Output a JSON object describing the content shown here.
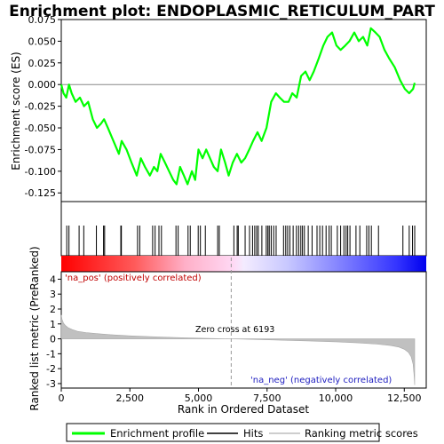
{
  "chart_data": {
    "type": "line",
    "title": "Enrichment plot: ENDOPLASMIC_RETICULUM_PART",
    "xlabel": "Rank in Ordered Dataset",
    "top_panel": {
      "ylabel": "Enrichment score (ES)",
      "xlim": [
        0,
        13300
      ],
      "ylim": [
        -0.135,
        0.075
      ],
      "yticks": [
        "0.075",
        "0.050",
        "0.025",
        "0.000",
        "-0.025",
        "-0.050",
        "-0.075",
        "-0.100",
        "-0.125"
      ],
      "ytick_values": [
        0.075,
        0.05,
        0.025,
        0.0,
        -0.025,
        -0.05,
        -0.075,
        -0.1,
        -0.125
      ],
      "series": [
        {
          "name": "Enrichment profile",
          "color": "#00ff00",
          "x": [
            0,
            80,
            180,
            280,
            380,
            520,
            680,
            830,
            980,
            1150,
            1300,
            1450,
            1560,
            1700,
            1900,
            2100,
            2200,
            2380,
            2560,
            2750,
            2900,
            3050,
            3230,
            3380,
            3500,
            3620,
            3780,
            3930,
            4080,
            4200,
            4330,
            4470,
            4600,
            4760,
            4880,
            5000,
            5150,
            5280,
            5420,
            5560,
            5700,
            5820,
            5970,
            6100,
            6250,
            6400,
            6560,
            6700,
            6850,
            6990,
            7150,
            7300,
            7480,
            7650,
            7820,
            7960,
            8120,
            8280,
            8420,
            8580,
            8740,
            8900,
            9050,
            9200,
            9380,
            9550,
            9700,
            9870,
            10030,
            10180,
            10350,
            10500,
            10680,
            10840,
            11000,
            11150,
            11280,
            11450,
            11600,
            11780,
            11950,
            12150,
            12350,
            12520,
            12680,
            12820,
            12880
          ],
          "y": [
            0.0,
            -0.01,
            -0.015,
            0.0,
            -0.01,
            -0.02,
            -0.015,
            -0.025,
            -0.02,
            -0.04,
            -0.05,
            -0.045,
            -0.04,
            -0.05,
            -0.065,
            -0.08,
            -0.065,
            -0.075,
            -0.09,
            -0.105,
            -0.085,
            -0.095,
            -0.105,
            -0.095,
            -0.1,
            -0.08,
            -0.09,
            -0.1,
            -0.11,
            -0.115,
            -0.095,
            -0.105,
            -0.115,
            -0.1,
            -0.11,
            -0.075,
            -0.085,
            -0.075,
            -0.085,
            -0.095,
            -0.1,
            -0.075,
            -0.09,
            -0.105,
            -0.09,
            -0.08,
            -0.09,
            -0.085,
            -0.075,
            -0.065,
            -0.055,
            -0.065,
            -0.05,
            -0.02,
            -0.01,
            -0.015,
            -0.02,
            -0.02,
            -0.01,
            -0.015,
            0.01,
            0.015,
            0.005,
            0.015,
            0.03,
            0.045,
            0.055,
            0.06,
            0.045,
            0.04,
            0.045,
            0.05,
            0.06,
            0.05,
            0.055,
            0.045,
            0.065,
            0.06,
            0.055,
            0.04,
            0.03,
            0.02,
            0.005,
            -0.005,
            -0.01,
            -0.005,
            0.002
          ]
        }
      ]
    },
    "hits_panel": {
      "legend_label": "Hits",
      "hit_positions": [
        200,
        280,
        650,
        820,
        1280,
        1540,
        1580,
        2170,
        2190,
        2780,
        2860,
        3330,
        3420,
        3560,
        3650,
        4180,
        4260,
        4620,
        4700,
        4990,
        5070,
        5250,
        5700,
        5760,
        6290,
        6410,
        6450,
        6700,
        6860,
        6970,
        7050,
        7120,
        7180,
        7310,
        7470,
        7530,
        7580,
        7650,
        7740,
        7830,
        8100,
        8180,
        8250,
        8330,
        8450,
        8570,
        8650,
        8730,
        8790,
        8860,
        9000,
        9140,
        9320,
        9420,
        9520,
        9650,
        9760,
        9840,
        10060,
        10180,
        10300,
        10380,
        10440,
        10520,
        10740,
        10880,
        11130,
        11210,
        11300,
        11560,
        12450,
        12680,
        12800,
        12880
      ]
    },
    "metric_panel": {
      "ylabel": "Ranked list metric (PreRanked)",
      "legend_label": "Ranking metric scores",
      "ylim": [
        -3.3,
        4.5
      ],
      "yticks": [
        "4",
        "3",
        "2",
        "1",
        "0",
        "-1",
        "-2",
        "-3"
      ],
      "ytick_values": [
        4,
        3,
        2,
        1,
        0,
        -1,
        -2,
        -3
      ],
      "xticks": [
        "0",
        "2,500",
        "5,000",
        "7,500",
        "10,000",
        "12,500"
      ],
      "xtick_values": [
        0,
        2500,
        5000,
        7500,
        10000,
        12500
      ],
      "zero_cross_label": "Zero cross at 6193",
      "zero_cross": 6193,
      "pos_label": "'na_pos' (positively correlated)",
      "neg_label": "'na_neg' (negatively correlated)",
      "curve_x": [
        0,
        30,
        80,
        150,
        250,
        400,
        600,
        900,
        1300,
        1800,
        2500,
        3500,
        4500,
        5500,
        6193,
        7000,
        8000,
        9000,
        10000,
        10800,
        11500,
        12000,
        12300,
        12500,
        12650,
        12750,
        12820,
        12860,
        12880
      ],
      "curve_y": [
        1.6,
        1.3,
        1.05,
        0.9,
        0.75,
        0.62,
        0.5,
        0.42,
        0.35,
        0.28,
        0.2,
        0.13,
        0.07,
        0.02,
        0.0,
        -0.04,
        -0.09,
        -0.14,
        -0.2,
        -0.27,
        -0.35,
        -0.45,
        -0.55,
        -0.7,
        -0.9,
        -1.2,
        -1.7,
        -2.5,
        -3.1
      ]
    },
    "legend": {
      "items": [
        {
          "label": "Enrichment profile",
          "color": "#00ff00"
        },
        {
          "label": "Hits",
          "color": "#000000"
        },
        {
          "label": "Ranking metric scores",
          "color": "#bebebe"
        }
      ]
    }
  }
}
